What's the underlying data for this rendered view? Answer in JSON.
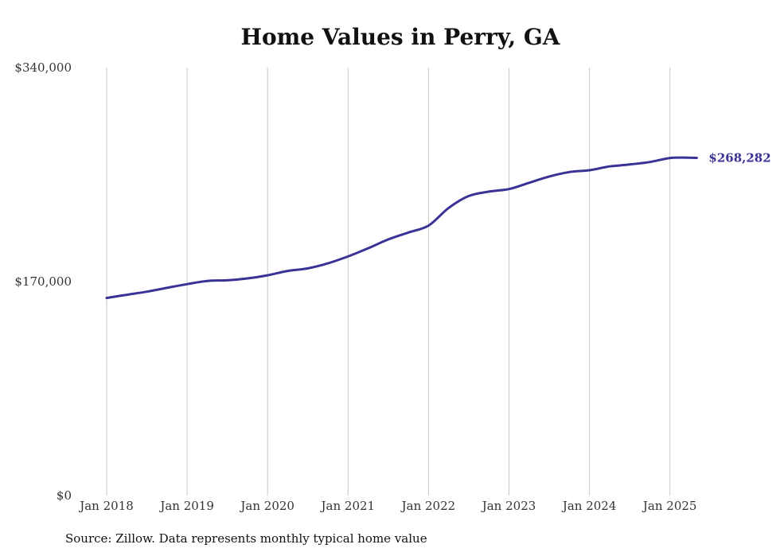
{
  "chart_data": {
    "type": "line",
    "title": "Home Values in Perry, GA",
    "source": "Source: Zillow. Data represents monthly typical home value",
    "xlabel": "",
    "ylabel": "",
    "ylim": [
      0,
      340000
    ],
    "y_ticks": [
      {
        "value": 0,
        "label": "$0"
      },
      {
        "value": 170000,
        "label": "$170,000"
      },
      {
        "value": 340000,
        "label": "$340,000"
      }
    ],
    "x_ticks": [
      {
        "date": "2018-01",
        "label": "Jan 2018"
      },
      {
        "date": "2019-01",
        "label": "Jan 2019"
      },
      {
        "date": "2020-01",
        "label": "Jan 2020"
      },
      {
        "date": "2021-01",
        "label": "Jan 2021"
      },
      {
        "date": "2022-01",
        "label": "Jan 2022"
      },
      {
        "date": "2023-01",
        "label": "Jan 2023"
      },
      {
        "date": "2024-01",
        "label": "Jan 2024"
      },
      {
        "date": "2025-01",
        "label": "Jan 2025"
      }
    ],
    "grid": "vertical",
    "line_color": "#3a3296",
    "end_label": "$268,282",
    "series": [
      {
        "x": [
          "2018-01",
          "2018-04",
          "2018-07",
          "2018-10",
          "2019-01",
          "2019-04",
          "2019-07",
          "2019-10",
          "2020-01",
          "2020-04",
          "2020-07",
          "2020-10",
          "2021-01",
          "2021-04",
          "2021-07",
          "2021-10",
          "2022-01",
          "2022-04",
          "2022-07",
          "2022-10",
          "2023-01",
          "2023-04",
          "2023-07",
          "2023-10",
          "2024-01",
          "2024-04",
          "2024-07",
          "2024-10",
          "2025-01",
          "2025-03",
          "2025-05"
        ],
        "values": [
          157000,
          159500,
          162000,
          165000,
          168000,
          170500,
          171000,
          172500,
          175000,
          178500,
          180500,
          184500,
          190000,
          196500,
          203500,
          209000,
          214500,
          228500,
          238000,
          241500,
          243500,
          248500,
          253500,
          257000,
          258500,
          261500,
          263000,
          265000,
          268200,
          268500,
          268282
        ]
      }
    ]
  }
}
